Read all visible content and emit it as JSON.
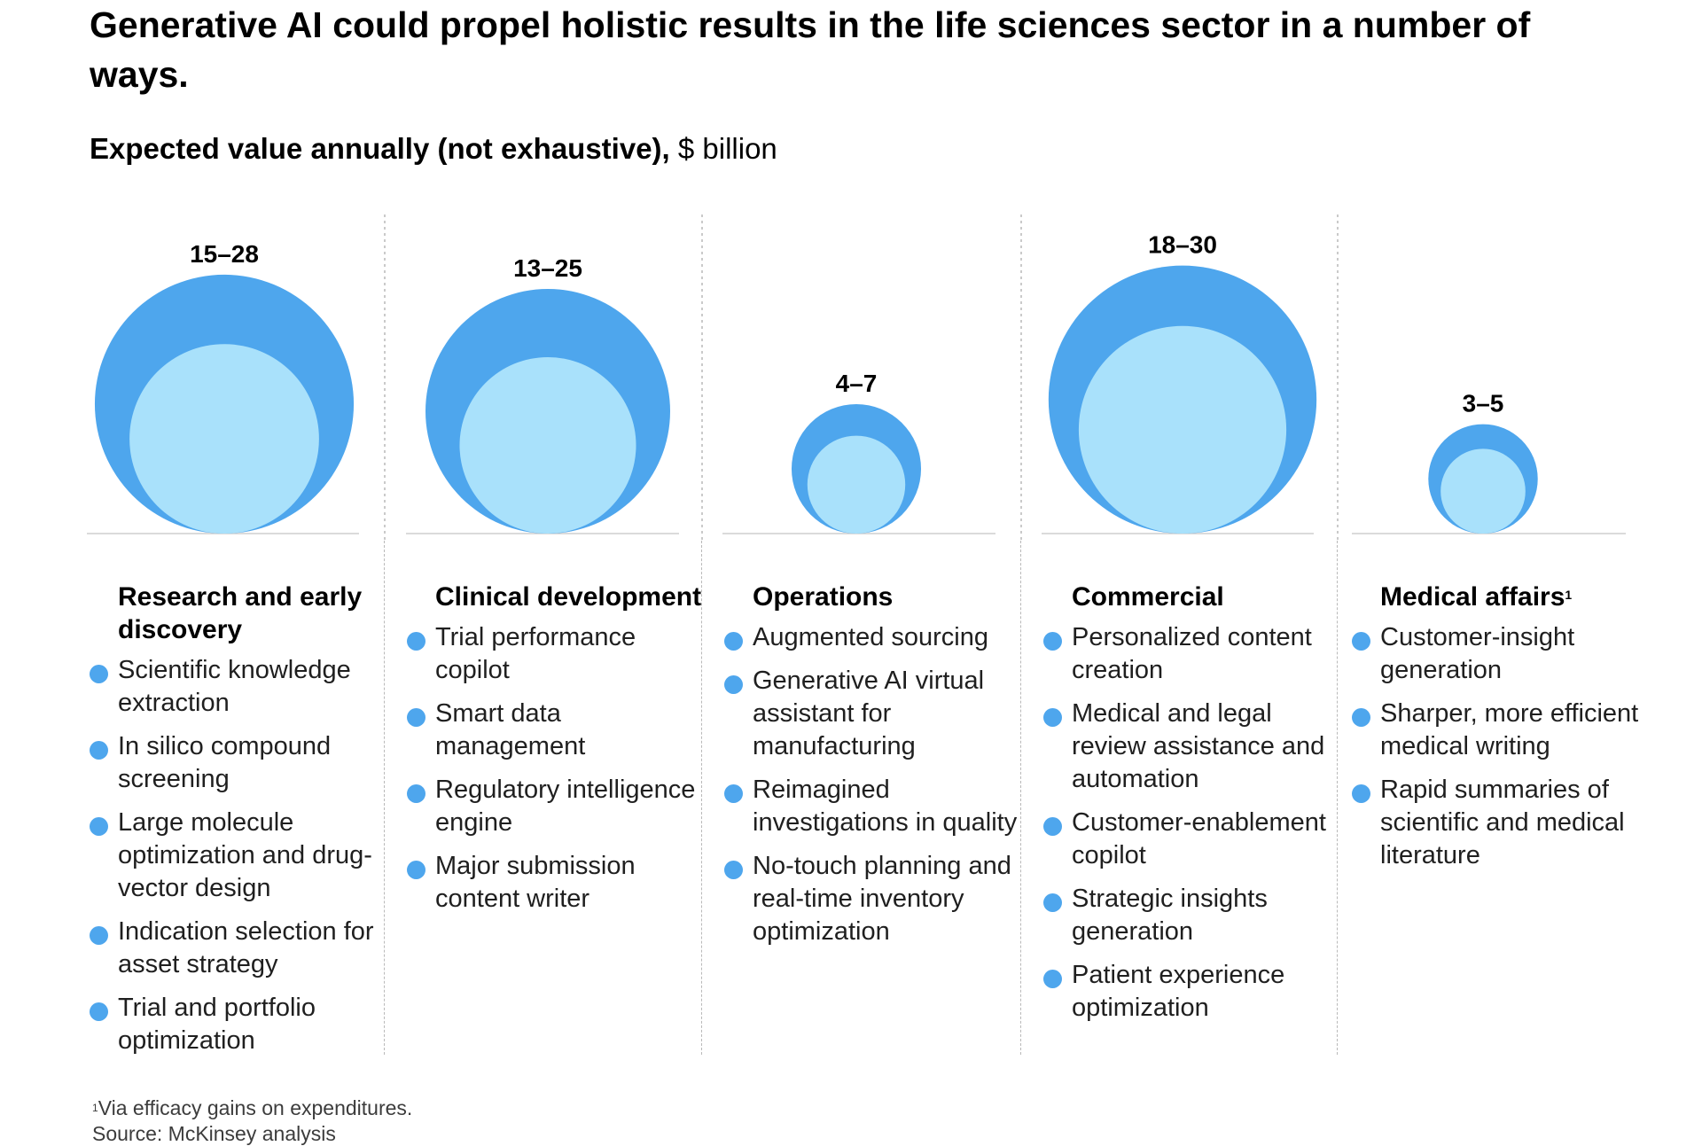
{
  "title": "Generative AI could propel holistic results in the life sciences sector in a number of ways.",
  "subtitle_bold": "Expected value annually (not exhaustive),",
  "subtitle_unit": " $ billion",
  "colors": {
    "outer": "#4ea6ed",
    "inner": "#a9e1fb",
    "bullet": "#4ea6ed"
  },
  "chart_data": {
    "type": "bubble",
    "categories": [
      "Research and early discovery",
      "Clinical development",
      "Operations",
      "Commercial",
      "Medical affairs"
    ],
    "ranges": [
      {
        "low": 15,
        "high": 28,
        "label": "15–28"
      },
      {
        "low": 13,
        "high": 25,
        "label": "13–25"
      },
      {
        "low": 4,
        "high": 7,
        "label": "4–7"
      },
      {
        "low": 18,
        "high": 30,
        "label": "18–30"
      },
      {
        "low": 3,
        "high": 5,
        "label": "3–5"
      }
    ]
  },
  "columns": [
    {
      "title": "Research and early discovery",
      "items": [
        "Scientific knowledge extraction",
        "In silico compound screening",
        "Large molecule optimization and drug-vector design",
        "Indication selection for asset strategy",
        "Trial and portfolio optimization"
      ]
    },
    {
      "title": "Clinical development",
      "items": [
        "Trial performance copilot",
        "Smart data management",
        "Regulatory intelligence engine",
        "Major submission content writer"
      ]
    },
    {
      "title": "Operations",
      "items": [
        "Augmented sourcing",
        "Generative AI virtual assistant for manufacturing",
        "Reimagined investigations in quality",
        "No-touch planning and real-time inventory optimization"
      ]
    },
    {
      "title": "Commercial",
      "items": [
        "Personalized content creation",
        "Medical and legal review assistance and automation",
        "Customer-enablement copilot",
        "Strategic insights generation",
        "Patient experience optimization"
      ]
    },
    {
      "title": "Medical affairs",
      "title_sup": "1",
      "items": [
        "Customer-insight generation",
        "Sharper, more efficient medical writing",
        "Rapid summaries of scientific and medical literature"
      ]
    }
  ],
  "footnote_sup": "1",
  "footnote": "Via efficacy gains on expenditures.",
  "source": "Source: McKinsey analysis"
}
